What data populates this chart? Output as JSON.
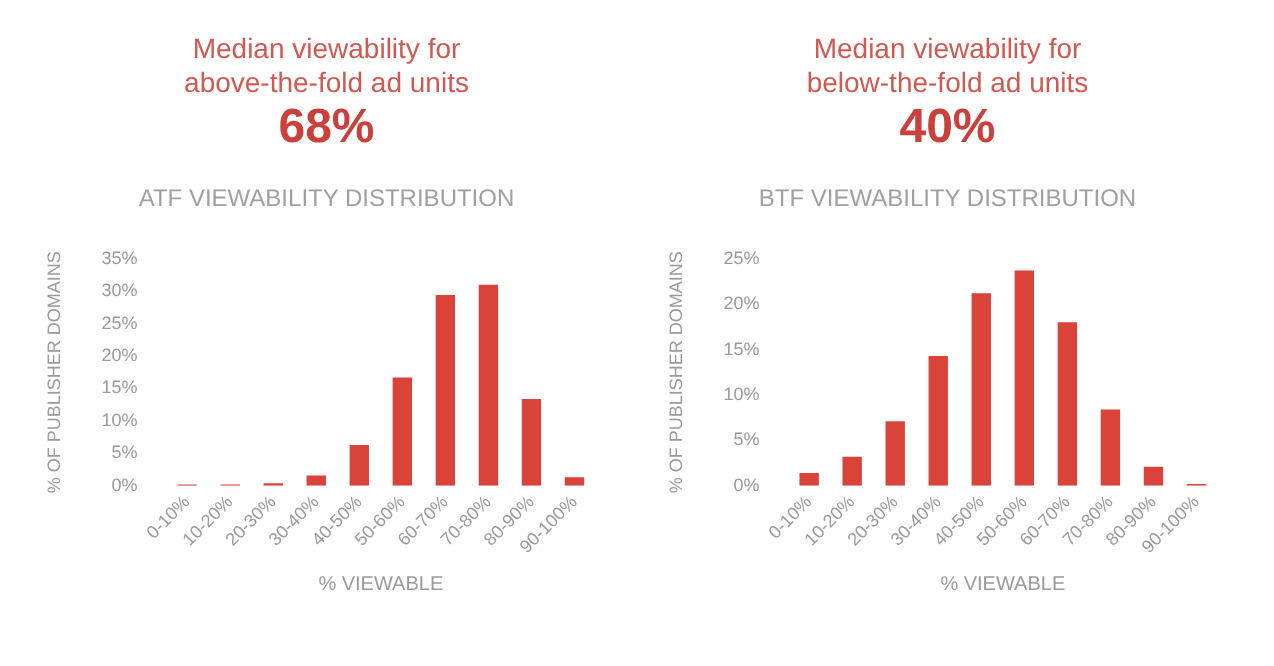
{
  "chart_data": [
    {
      "type": "bar",
      "annotations": [
        "Median viewability for above-the-fold ad units",
        "68%"
      ],
      "title": "ATF VIEWABILITY DISTRIBUTION",
      "xlabel": "% VIEWABLE",
      "ylabel": "% OF PUBLISHER DOMAINS",
      "categories": [
        "0-10%",
        "10-20%",
        "20-30%",
        "30-40%",
        "40-50%",
        "50-60%",
        "60-70%",
        "70-80%",
        "80-90%",
        "90-100%"
      ],
      "values": [
        0.2,
        0.2,
        0.4,
        1.6,
        6.3,
        16.7,
        29.4,
        31,
        13.4,
        1.3
      ],
      "color": "#d9433a",
      "ylim": [
        0,
        35
      ],
      "yticks": [
        {
          "value": 0,
          "label": "0%"
        },
        {
          "value": 5,
          "label": "5%"
        },
        {
          "value": 10,
          "label": "10%"
        },
        {
          "value": 15,
          "label": "15%"
        },
        {
          "value": 20,
          "label": "20%"
        },
        {
          "value": 25,
          "label": "25%"
        },
        {
          "value": 30,
          "label": "30%"
        },
        {
          "value": 35,
          "label": "35%"
        }
      ]
    },
    {
      "type": "bar",
      "annotations": [
        "Median viewability for below-the-fold ad units",
        "40%"
      ],
      "title": "BTF VIEWABILITY DISTRIBUTION",
      "xlabel": "% VIEWABLE",
      "ylabel": "% OF PUBLISHER DOMAINS",
      "categories": [
        "0-10%",
        "10-20%",
        "20-30%",
        "30-40%",
        "40-50%",
        "50-60%",
        "60-70%",
        "70-80%",
        "80-90%",
        "90-100%"
      ],
      "values": [
        1.4,
        3.2,
        7.1,
        14.3,
        21.2,
        23.7,
        18,
        8.4,
        2.1,
        0.2
      ],
      "color": "#d9433a",
      "ylim": [
        0,
        25
      ],
      "yticks": [
        {
          "value": 0,
          "label": "0%"
        },
        {
          "value": 5,
          "label": "5%"
        },
        {
          "value": 10,
          "label": "10%"
        },
        {
          "value": 15,
          "label": "15%"
        },
        {
          "value": 20,
          "label": "20%"
        },
        {
          "value": 25,
          "label": "25%"
        }
      ]
    }
  ]
}
